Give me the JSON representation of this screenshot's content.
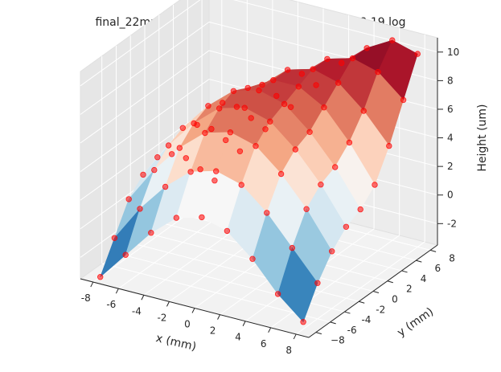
{
  "chart_data": {
    "type": "surface3d",
    "title": "final_22mm_1809-3-4_PMMA_2018-10-01_17:18:19.log",
    "xlabel": "x (mm)",
    "ylabel": "y (mm)",
    "zlabel": "Height (um)",
    "xlim": [
      -9,
      9
    ],
    "ylim": [
      -9,
      9
    ],
    "zlim": [
      -3.5,
      11
    ],
    "x_ticks": [
      -8,
      -6,
      -4,
      -2,
      0,
      2,
      4,
      6,
      8
    ],
    "y_ticks": [
      -6,
      -4,
      -2,
      0,
      2,
      4,
      6,
      8
    ],
    "y_ticks_extra": [
      "−8"
    ],
    "z_ticks": [
      -2,
      0,
      2,
      4,
      6,
      8,
      10
    ],
    "grid": true,
    "colormap": "RdBu_r",
    "marker_color": "#ff0000",
    "surface": {
      "x": [
        -8,
        -6,
        -4,
        -2,
        0,
        2,
        4,
        6,
        8
      ],
      "y": [
        -8,
        -6,
        -4,
        -2,
        0,
        2,
        4,
        6,
        8
      ],
      "z": [
        [
          -3.5,
          -1.5,
          0.5,
          2.0,
          2.5,
          2.0,
          0.5,
          -1.5,
          -3.0
        ],
        [
          -1.5,
          1.0,
          3.0,
          4.5,
          5.0,
          4.5,
          3.0,
          1.0,
          -1.0
        ],
        [
          0.5,
          3.0,
          5.0,
          6.5,
          7.0,
          6.5,
          5.0,
          3.0,
          0.5
        ],
        [
          1.5,
          4.0,
          6.0,
          7.5,
          8.0,
          7.5,
          6.0,
          4.0,
          1.5
        ],
        [
          2.0,
          4.5,
          6.5,
          8.0,
          8.5,
          8.0,
          6.5,
          4.5,
          2.0
        ],
        [
          1.5,
          4.0,
          6.0,
          7.5,
          8.5,
          8.5,
          7.5,
          5.5,
          3.0
        ],
        [
          0.5,
          3.0,
          5.0,
          7.0,
          8.5,
          9.0,
          8.5,
          7.0,
          5.0
        ],
        [
          -1.0,
          1.5,
          3.5,
          5.5,
          7.5,
          9.0,
          9.5,
          9.0,
          7.5
        ],
        [
          -2.5,
          0.0,
          2.0,
          4.0,
          6.0,
          8.0,
          9.5,
          10.5,
          10.0
        ]
      ]
    }
  }
}
